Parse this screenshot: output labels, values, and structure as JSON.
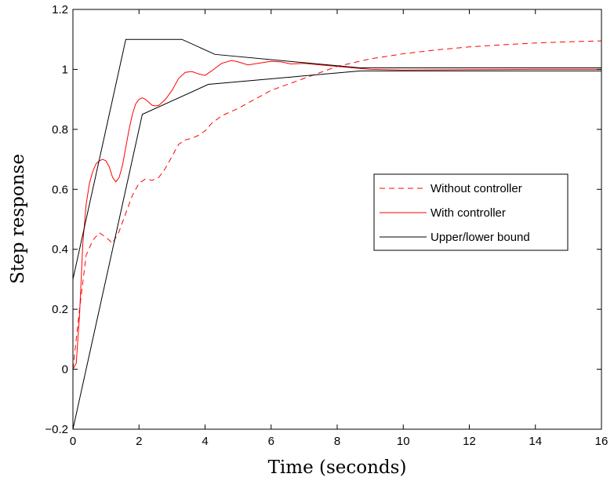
{
  "chart_data": {
    "type": "line",
    "title": "",
    "xlabel": "Time (seconds)",
    "ylabel": "Step response",
    "xlim": [
      0,
      16
    ],
    "ylim": [
      -0.2,
      1.2
    ],
    "xticks": [
      0,
      2,
      4,
      6,
      8,
      10,
      12,
      14,
      16
    ],
    "yticks": [
      -0.2,
      0,
      0.2,
      0.4,
      0.6,
      0.8,
      1,
      1.2
    ],
    "xtick_labels": [
      "0",
      "2",
      "4",
      "6",
      "8",
      "10",
      "12",
      "14",
      "16"
    ],
    "ytick_labels": [
      "−0.2",
      "0",
      "0.2",
      "0.4",
      "0.6",
      "0.8",
      "1",
      "1.2"
    ],
    "grid": false,
    "legend_position": "center-right",
    "series": [
      {
        "name": "Without controller",
        "color": "#ff0000",
        "style": "dashed",
        "x": [
          0,
          0.2,
          0.4,
          0.6,
          0.8,
          1.0,
          1.2,
          1.4,
          1.6,
          1.8,
          2.0,
          2.2,
          2.4,
          2.6,
          2.8,
          3.0,
          3.2,
          3.4,
          3.6,
          3.8,
          4.0,
          4.2,
          4.5,
          5.0,
          5.5,
          6.0,
          6.5,
          7.0,
          7.5,
          8.0,
          9.0,
          10.0,
          11.0,
          12.0,
          13.0,
          14.0,
          15.0,
          16.0
        ],
        "y": [
          0,
          0.2,
          0.38,
          0.43,
          0.455,
          0.44,
          0.42,
          0.46,
          0.52,
          0.58,
          0.62,
          0.635,
          0.63,
          0.64,
          0.67,
          0.71,
          0.75,
          0.765,
          0.77,
          0.78,
          0.795,
          0.82,
          0.845,
          0.87,
          0.9,
          0.93,
          0.95,
          0.97,
          0.99,
          1.01,
          1.035,
          1.052,
          1.065,
          1.075,
          1.082,
          1.088,
          1.092,
          1.095
        ]
      },
      {
        "name": "With controller",
        "color": "#ff0000",
        "style": "solid",
        "x": [
          0,
          0.1,
          0.2,
          0.3,
          0.4,
          0.5,
          0.6,
          0.7,
          0.8,
          0.9,
          1.0,
          1.1,
          1.2,
          1.3,
          1.4,
          1.5,
          1.6,
          1.7,
          1.8,
          1.9,
          2.0,
          2.1,
          2.2,
          2.3,
          2.4,
          2.5,
          2.6,
          2.8,
          3.0,
          3.2,
          3.4,
          3.6,
          3.8,
          4.0,
          4.2,
          4.5,
          4.8,
          5.0,
          5.3,
          5.6,
          6.0,
          6.3,
          6.6,
          7.0,
          7.5,
          8.0,
          9.0,
          10.0,
          12.0,
          14.0,
          16.0
        ],
        "y": [
          0,
          0.02,
          0.18,
          0.42,
          0.55,
          0.62,
          0.66,
          0.685,
          0.695,
          0.7,
          0.695,
          0.675,
          0.64,
          0.625,
          0.64,
          0.68,
          0.74,
          0.8,
          0.85,
          0.885,
          0.9,
          0.905,
          0.9,
          0.89,
          0.88,
          0.878,
          0.88,
          0.9,
          0.93,
          0.97,
          0.99,
          0.993,
          0.985,
          0.98,
          0.995,
          1.02,
          1.03,
          1.025,
          1.015,
          1.02,
          1.027,
          1.025,
          1.018,
          1.02,
          1.015,
          1.01,
          1.0,
          0.998,
          0.999,
          1.0,
          1.0
        ]
      },
      {
        "name": "Upper/lower bound",
        "color": "#000000",
        "style": "solid",
        "x": [
          0,
          1.6,
          3.3,
          4.3,
          8.7,
          16.0
        ],
        "y": [
          0.3,
          1.1,
          1.1,
          1.05,
          1.005,
          1.005
        ]
      },
      {
        "name": "",
        "color": "#000000",
        "style": "solid",
        "x": [
          0,
          2.1,
          4.1,
          8.7,
          16.0
        ],
        "y": [
          -0.2,
          0.85,
          0.95,
          0.995,
          0.995
        ]
      }
    ],
    "legend": [
      {
        "label": "Without controller",
        "color": "#ff0000",
        "style": "dashed"
      },
      {
        "label": "With controller",
        "color": "#ff0000",
        "style": "solid"
      },
      {
        "label": "Upper/lower bound",
        "color": "#000000",
        "style": "solid"
      }
    ]
  }
}
